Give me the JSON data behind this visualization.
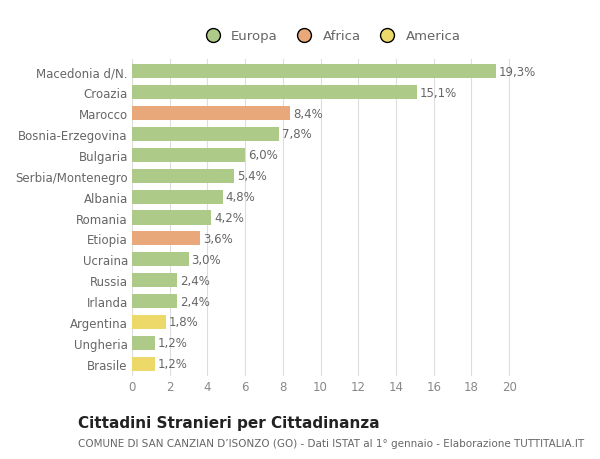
{
  "categories": [
    "Macedonia d/N.",
    "Croazia",
    "Marocco",
    "Bosnia-Erzegovina",
    "Bulgaria",
    "Serbia/Montenegro",
    "Albania",
    "Romania",
    "Etiopia",
    "Ucraina",
    "Russia",
    "Irlanda",
    "Argentina",
    "Ungheria",
    "Brasile"
  ],
  "values": [
    19.3,
    15.1,
    8.4,
    7.8,
    6.0,
    5.4,
    4.8,
    4.2,
    3.6,
    3.0,
    2.4,
    2.4,
    1.8,
    1.2,
    1.2
  ],
  "labels": [
    "19,3%",
    "15,1%",
    "8,4%",
    "7,8%",
    "6,0%",
    "5,4%",
    "4,8%",
    "4,2%",
    "3,6%",
    "3,0%",
    "2,4%",
    "2,4%",
    "1,8%",
    "1,2%",
    "1,2%"
  ],
  "colors": [
    "#aeca88",
    "#aeca88",
    "#e8a87a",
    "#aeca88",
    "#aeca88",
    "#aeca88",
    "#aeca88",
    "#aeca88",
    "#e8a87a",
    "#aeca88",
    "#aeca88",
    "#aeca88",
    "#edd96a",
    "#aeca88",
    "#edd96a"
  ],
  "legend_labels": [
    "Europa",
    "Africa",
    "America"
  ],
  "legend_colors": [
    "#aeca88",
    "#e8a87a",
    "#edd96a"
  ],
  "title": "Cittadini Stranieri per Cittadinanza",
  "subtitle": "COMUNE DI SAN CANZIAN D’ISONZO (GO) - Dati ISTAT al 1° gennaio - Elaborazione TUTTITALIA.IT",
  "xlim": [
    0,
    21
  ],
  "xticks": [
    0,
    2,
    4,
    6,
    8,
    10,
    12,
    14,
    16,
    18,
    20
  ],
  "bg_color": "#ffffff",
  "grid_color": "#dddddd",
  "bar_height": 0.68,
  "label_fontsize": 8.5,
  "tick_fontsize": 8.5,
  "title_fontsize": 11,
  "subtitle_fontsize": 7.5
}
